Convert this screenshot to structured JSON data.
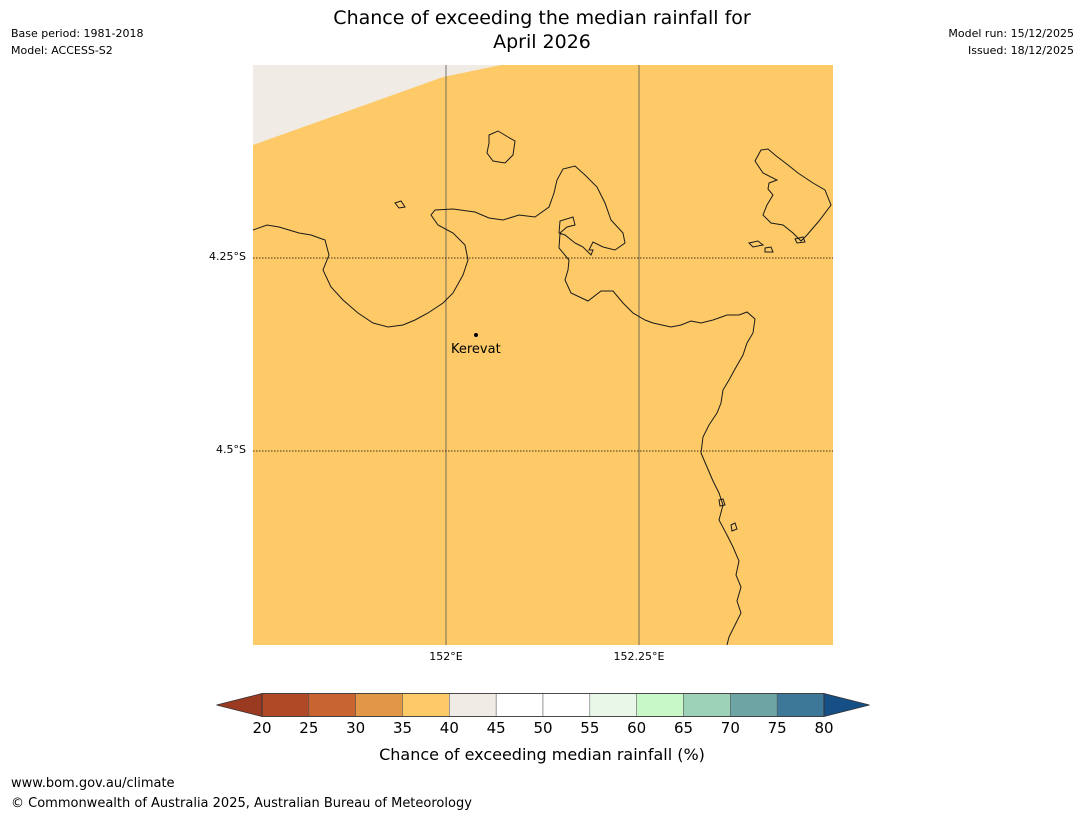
{
  "meta": {
    "base_period": "Base period: 1981-2018",
    "model": "Model: ACCESS-S2",
    "model_run": "Model run: 15/12/2025",
    "issued": "Issued: 18/12/2025"
  },
  "title": {
    "line1": "Chance of exceeding the median rainfall for",
    "line2": "April 2026"
  },
  "map": {
    "latitude_labels": [
      "4.25°S",
      "4.5°S"
    ],
    "longitude_labels": [
      "152°E",
      "152.25°E"
    ],
    "place": "Kerevat",
    "fill_color": "#fdca67",
    "gray_color": "#f0ebe5"
  },
  "legend": {
    "ticks": [
      "20",
      "25",
      "30",
      "35",
      "40",
      "45",
      "50",
      "55",
      "60",
      "65",
      "70",
      "75",
      "80"
    ],
    "label": "Chance of exceeding median rainfall (%)",
    "colors": [
      "#9a3a20",
      "#b04a26",
      "#c86430",
      "#e19746",
      "#fdca67",
      "#f0ebe5",
      "#ffffff",
      "#ffffff",
      "#e9f7e9",
      "#c8f8c8",
      "#9dd1b8",
      "#6ea4a4",
      "#3e7898",
      "#154f86"
    ]
  },
  "footer": {
    "url": "www.bom.gov.au/climate",
    "copyright": "© Commonwealth of Australia 2025, Australian Bureau of Meteorology"
  }
}
